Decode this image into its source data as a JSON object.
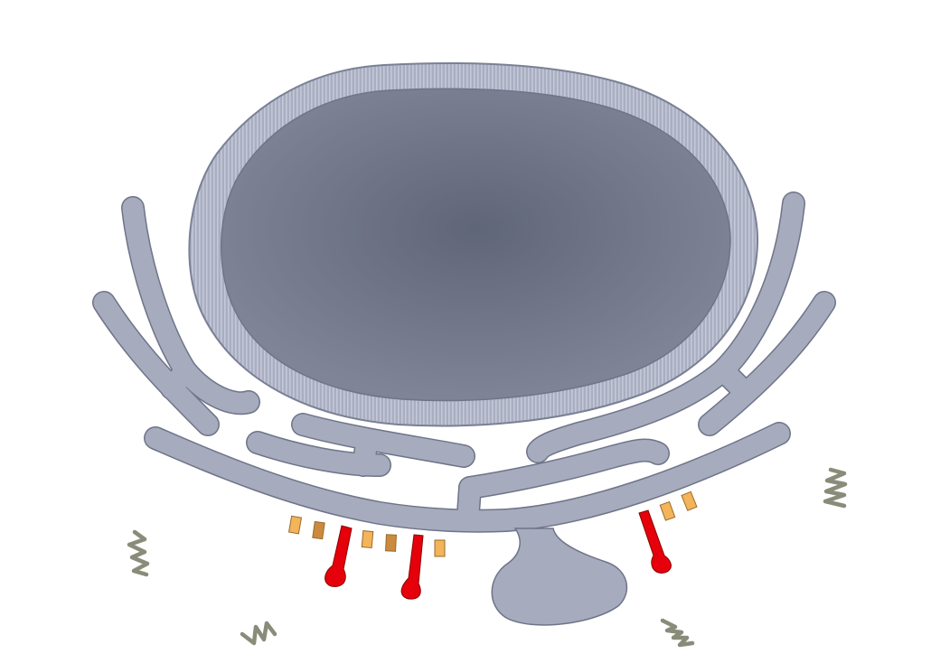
{
  "colors": {
    "background": "#ffffff",
    "nucleus_center": "#5f6678",
    "nucleus_edge": "#7d8394",
    "nuclear_envelope": "#a5aabd",
    "envelope_stroke": "#7a8094",
    "envelope_stripes": "#c3c8d8",
    "membrane_fill": "#a6abbe",
    "membrane_stroke": "#6f7488",
    "protein_light": "#f3b45a",
    "protein_dark": "#cc8a3e",
    "protein_stroke": "#9a6a2a",
    "channel_fill": "#e5000b",
    "channel_stroke": "#8a0000",
    "squiggle": "#8a8c7a"
  },
  "icons": {
    "nucleus": "nucleus-icon",
    "membrane": "er-membrane-icon",
    "protein": "membrane-protein-icon",
    "channel": "channel-protein-icon",
    "squiggle": "filament-squiggle-icon"
  }
}
